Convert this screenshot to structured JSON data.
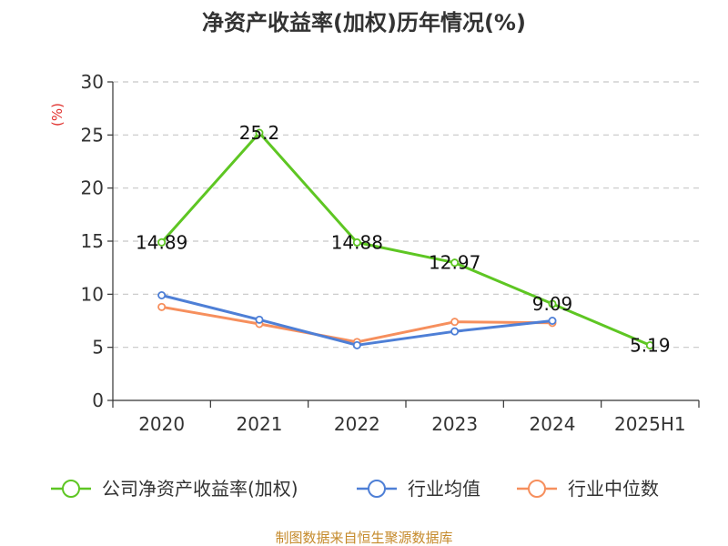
{
  "chart_data": {
    "type": "line",
    "title": "净资产收益率(加权)历年情况(%)",
    "ylabel": "(%)",
    "categories": [
      "2020",
      "2021",
      "2022",
      "2023",
      "2024",
      "2025H1"
    ],
    "ylim": [
      0,
      30
    ],
    "yticks": [
      0,
      5,
      10,
      15,
      20,
      25,
      30
    ],
    "grid": true,
    "legend_position": "bottom",
    "series": [
      {
        "name": "公司净资产收益率(加权)",
        "color": "#5ec623",
        "values": [
          14.89,
          25.2,
          14.88,
          12.97,
          9.09,
          5.19
        ],
        "labels": [
          "14.89",
          "25.2",
          "14.88",
          "12.97",
          "9.09",
          "5.19"
        ]
      },
      {
        "name": "行业均值",
        "color": "#4e7fd6",
        "values": [
          9.9,
          7.6,
          5.2,
          6.5,
          7.5,
          null
        ]
      },
      {
        "name": "行业中位数",
        "color": "#f68f5d",
        "values": [
          8.8,
          7.2,
          5.5,
          7.4,
          7.3,
          null
        ]
      }
    ],
    "source": "制图数据来自恒生聚源数据库"
  }
}
